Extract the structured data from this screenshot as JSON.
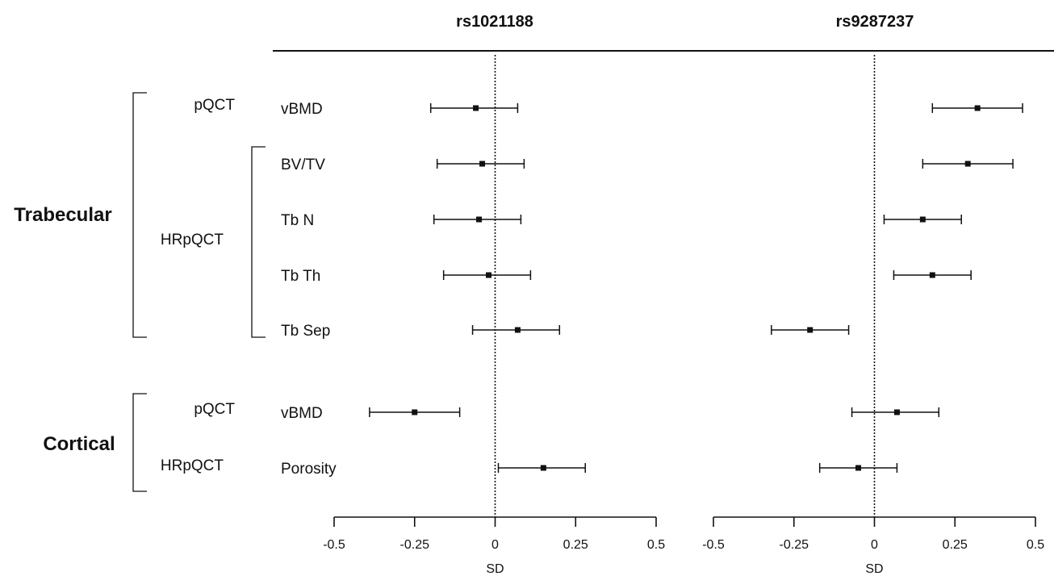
{
  "chart_data": {
    "type": "forest",
    "panels": [
      {
        "title": "rs1021188",
        "xlabel": "SD",
        "xlim": [
          -0.5,
          0.5
        ],
        "ticks": [
          "-0.5",
          "-0.25",
          "0",
          "0.25",
          "0.5"
        ],
        "tick_values": [
          -0.5,
          -0.25,
          0,
          0.25,
          0.5
        ],
        "estimates": [
          -0.06,
          -0.04,
          -0.05,
          -0.02,
          0.07,
          -0.25,
          0.15
        ],
        "lower": [
          -0.2,
          -0.18,
          -0.19,
          -0.16,
          -0.07,
          -0.39,
          0.01
        ],
        "upper": [
          0.07,
          0.09,
          0.08,
          0.11,
          0.2,
          -0.11,
          0.28
        ]
      },
      {
        "title": "rs9287237",
        "xlabel": "SD",
        "xlim": [
          -0.5,
          0.5
        ],
        "ticks": [
          "-0.5",
          "-0.25",
          "0",
          "0.25",
          "0.5"
        ],
        "tick_values": [
          -0.5,
          -0.25,
          0,
          0.25,
          0.5
        ],
        "estimates": [
          0.32,
          0.29,
          0.15,
          0.18,
          -0.2,
          0.07,
          -0.05
        ],
        "lower": [
          0.18,
          0.15,
          0.03,
          0.06,
          -0.32,
          -0.07,
          -0.17
        ],
        "upper": [
          0.46,
          0.43,
          0.27,
          0.3,
          -0.08,
          0.2,
          0.07
        ]
      }
    ],
    "rows": [
      "vBMD",
      "BV/TV",
      "Tb N",
      "Tb Th",
      "Tb Sep",
      "vBMD",
      "Porosity"
    ],
    "groups": [
      {
        "label": "Trabecular",
        "subgroups": [
          {
            "label": "pQCT",
            "rows": [
              0
            ]
          },
          {
            "label": "HRpQCT",
            "rows": [
              1,
              2,
              3,
              4
            ]
          }
        ]
      },
      {
        "label": "Cortical",
        "subgroups": [
          {
            "label": "pQCT",
            "rows": [
              5
            ]
          },
          {
            "label": "HRpQCT",
            "rows": [
              6
            ]
          }
        ]
      }
    ]
  }
}
